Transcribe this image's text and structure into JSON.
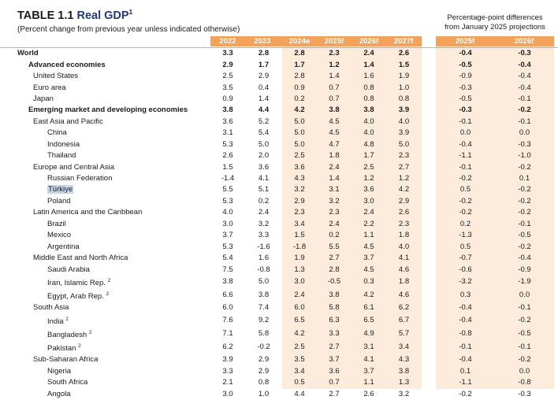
{
  "title": {
    "prefix": "TABLE 1.1",
    "label": "Real GDP",
    "footnote_mark": "1"
  },
  "subtitle": "(Percent change from previous year unless indicated otherwise)",
  "pp_header": {
    "line1": "Percentage-point differences",
    "line2": "from January 2025 projections"
  },
  "columns": [
    "2022",
    "2023",
    "2024e",
    "2025f",
    "2026f",
    "2027f"
  ],
  "pp_columns": [
    "2025f",
    "2026f"
  ],
  "colors": {
    "header_bg": "#f2a25b",
    "projection_bg": "#fdebdb",
    "highlight": "#c5d6ec",
    "title_accent": "#1f3a7a"
  },
  "rows": [
    {
      "name": "World",
      "bold": true,
      "level": 0,
      "values": [
        "3.3",
        "2.8",
        "2.8",
        "2.3",
        "2.4",
        "2.6"
      ],
      "pp": [
        "-0.4",
        "-0.3"
      ]
    },
    {
      "name": "Advanced economies",
      "bold": true,
      "level": 1,
      "values": [
        "2.9",
        "1.7",
        "1.7",
        "1.2",
        "1.4",
        "1.5"
      ],
      "pp": [
        "-0.5",
        "-0.4"
      ]
    },
    {
      "name": "United States",
      "level": 2,
      "values": [
        "2.5",
        "2.9",
        "2.8",
        "1.4",
        "1.6",
        "1.9"
      ],
      "pp": [
        "-0.9",
        "-0.4"
      ]
    },
    {
      "name": "Euro area",
      "level": 2,
      "values": [
        "3.5",
        "0.4",
        "0.9",
        "0.7",
        "0.8",
        "1.0"
      ],
      "pp": [
        "-0.3",
        "-0.4"
      ]
    },
    {
      "name": "Japan",
      "level": 2,
      "values": [
        "0.9",
        "1.4",
        "0.2",
        "0.7",
        "0.8",
        "0.8"
      ],
      "pp": [
        "-0.5",
        "-0.1"
      ]
    },
    {
      "name": "Emerging market and developing economies",
      "bold": true,
      "level": 1,
      "values": [
        "3.8",
        "4.4",
        "4.2",
        "3.8",
        "3.8",
        "3.9"
      ],
      "pp": [
        "-0.3",
        "-0.2"
      ]
    },
    {
      "name": "East Asia and Pacific",
      "level": 2,
      "values": [
        "3.6",
        "5.2",
        "5.0",
        "4.5",
        "4.0",
        "4.0"
      ],
      "pp": [
        "-0.1",
        "-0.1"
      ]
    },
    {
      "name": "China",
      "level": 3,
      "values": [
        "3.1",
        "5.4",
        "5.0",
        "4.5",
        "4.0",
        "3.9"
      ],
      "pp": [
        "0.0",
        "0.0"
      ]
    },
    {
      "name": "Indonesia",
      "level": 3,
      "values": [
        "5.3",
        "5.0",
        "5.0",
        "4.7",
        "4.8",
        "5.0"
      ],
      "pp": [
        "-0.4",
        "-0.3"
      ]
    },
    {
      "name": "Thailand",
      "level": 3,
      "values": [
        "2.6",
        "2.0",
        "2.5",
        "1.8",
        "1.7",
        "2.3"
      ],
      "pp": [
        "-1.1",
        "-1.0"
      ]
    },
    {
      "name": "Europe and Central Asia",
      "level": 2,
      "values": [
        "1.5",
        "3.6",
        "3.6",
        "2.4",
        "2.5",
        "2.7"
      ],
      "pp": [
        "-0.1",
        "-0.2"
      ]
    },
    {
      "name": "Russian Federation",
      "level": 3,
      "values": [
        "-1.4",
        "4.1",
        "4.3",
        "1.4",
        "1.2",
        "1.2"
      ],
      "pp": [
        "-0.2",
        "0.1"
      ]
    },
    {
      "name": "Türkiye",
      "level": 3,
      "highlight": true,
      "values": [
        "5.5",
        "5.1",
        "3.2",
        "3.1",
        "3.6",
        "4.2"
      ],
      "pp": [
        "0.5",
        "-0.2"
      ]
    },
    {
      "name": "Poland",
      "level": 3,
      "values": [
        "5.3",
        "0.2",
        "2.9",
        "3.2",
        "3.0",
        "2.9"
      ],
      "pp": [
        "-0.2",
        "-0.2"
      ]
    },
    {
      "name": "Latin America and the Caribbean",
      "level": 2,
      "values": [
        "4.0",
        "2.4",
        "2.3",
        "2.3",
        "2.4",
        "2.6"
      ],
      "pp": [
        "-0.2",
        "-0.2"
      ]
    },
    {
      "name": "Brazil",
      "level": 3,
      "values": [
        "3.0",
        "3.2",
        "3.4",
        "2.4",
        "2.2",
        "2.3"
      ],
      "pp": [
        "0.2",
        "-0.1"
      ]
    },
    {
      "name": "Mexico",
      "level": 3,
      "values": [
        "3.7",
        "3.3",
        "1.5",
        "0.2",
        "1.1",
        "1.8"
      ],
      "pp": [
        "-1.3",
        "-0.5"
      ]
    },
    {
      "name": "Argentina",
      "level": 3,
      "values": [
        "5.3",
        "-1.6",
        "-1.8",
        "5.5",
        "4.5",
        "4.0"
      ],
      "pp": [
        "0.5",
        "-0.2"
      ]
    },
    {
      "name": "Middle East and North Africa",
      "level": 2,
      "values": [
        "5.4",
        "1.6",
        "1.9",
        "2.7",
        "3.7",
        "4.1"
      ],
      "pp": [
        "-0.7",
        "-0.4"
      ]
    },
    {
      "name": "Saudi Arabia",
      "level": 3,
      "values": [
        "7.5",
        "-0.8",
        "1.3",
        "2.8",
        "4.5",
        "4.6"
      ],
      "pp": [
        "-0.6",
        "-0.9"
      ]
    },
    {
      "name": "Iran, Islamic Rep.",
      "footnote": "2",
      "level": 3,
      "values": [
        "3.8",
        "5.0",
        "3.0",
        "-0.5",
        "0.3",
        "1.8"
      ],
      "pp": [
        "-3.2",
        "-1.9"
      ]
    },
    {
      "name": "Egypt, Arab Rep.",
      "footnote": "2",
      "level": 3,
      "values": [
        "6.6",
        "3.8",
        "2.4",
        "3.8",
        "4.2",
        "4.6"
      ],
      "pp": [
        "0.3",
        "0.0"
      ]
    },
    {
      "name": "South Asia",
      "level": 2,
      "values": [
        "6.0",
        "7.4",
        "6.0",
        "5.8",
        "6.1",
        "6.2"
      ],
      "pp": [
        "-0.4",
        "-0.1"
      ]
    },
    {
      "name": "India",
      "footnote": "2",
      "level": 3,
      "values": [
        "7.6",
        "9.2",
        "6.5",
        "6.3",
        "6.5",
        "6.7"
      ],
      "pp": [
        "-0.4",
        "-0.2"
      ]
    },
    {
      "name": "Bangladesh",
      "footnote": "2",
      "level": 3,
      "values": [
        "7.1",
        "5.8",
        "4.2",
        "3.3",
        "4.9",
        "5.7"
      ],
      "pp": [
        "-0.8",
        "-0.5"
      ]
    },
    {
      "name": "Pakistan",
      "footnote": "2",
      "level": 3,
      "values": [
        "6.2",
        "-0.2",
        "2.5",
        "2.7",
        "3.1",
        "3.4"
      ],
      "pp": [
        "-0.1",
        "-0.1"
      ]
    },
    {
      "name": "Sub-Saharan Africa",
      "level": 2,
      "values": [
        "3.9",
        "2.9",
        "3.5",
        "3.7",
        "4.1",
        "4.3"
      ],
      "pp": [
        "-0.4",
        "-0.2"
      ]
    },
    {
      "name": "Nigeria",
      "level": 3,
      "values": [
        "3.3",
        "2.9",
        "3.4",
        "3.6",
        "3.7",
        "3.8"
      ],
      "pp": [
        "0.1",
        "0.0"
      ]
    },
    {
      "name": "South Africa",
      "level": 3,
      "values": [
        "2.1",
        "0.8",
        "0.5",
        "0.7",
        "1.1",
        "1.3"
      ],
      "pp": [
        "-1.1",
        "-0.8"
      ]
    },
    {
      "name": "Angola",
      "level": 3,
      "values": [
        "3.0",
        "1.0",
        "4.4",
        "2.7",
        "2.6",
        "3.2"
      ],
      "pp": [
        "-0.2",
        "-0.3"
      ]
    }
  ]
}
